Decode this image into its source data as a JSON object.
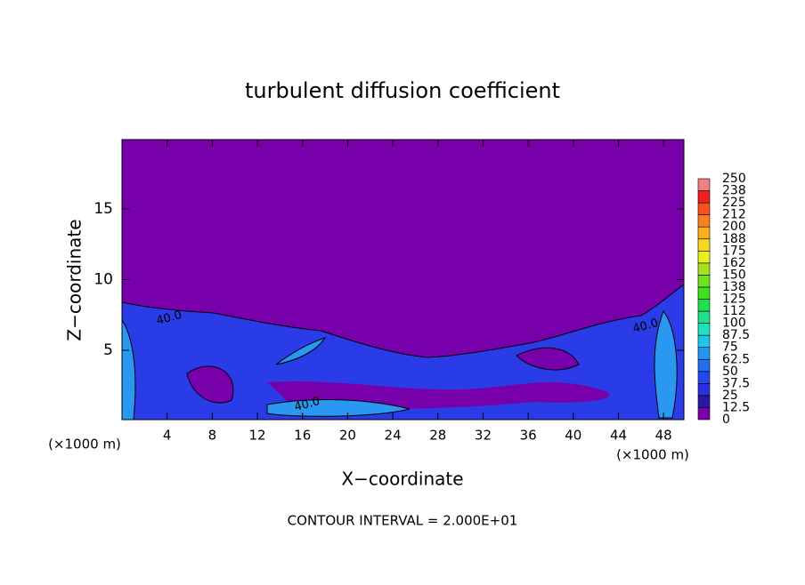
{
  "chart_data": {
    "type": "contour",
    "title": "turbulent diffusion coefficient",
    "xlabel": "X−coordinate",
    "ylabel": "Z−coordinate",
    "x_unit": "(×1000 m)",
    "footer": "CONTOUR INTERVAL = 2.000E+01",
    "xlim": [
      0,
      49.8
    ],
    "ylim": [
      0.1,
      19.9
    ],
    "xticks": [
      4,
      8,
      12,
      16,
      20,
      24,
      28,
      32,
      36,
      40,
      44,
      48
    ],
    "yticks": [
      5,
      10,
      15
    ],
    "contour_labels": [
      "40.0",
      "40.0",
      "40.0"
    ],
    "colorbar": {
      "levels": [
        0,
        12.5,
        25,
        37.5,
        50,
        62.5,
        75,
        87.5,
        100,
        {
          "value": 112.5,
          "label": "112"
        },
        125,
        {
          "value": 137.5,
          "label": "138"
        },
        150,
        {
          "value": 162.5,
          "label": "162"
        },
        175,
        {
          "value": 187.5,
          "label": "188"
        },
        200,
        {
          "value": 212.5,
          "label": "212"
        },
        225,
        {
          "value": 237.5,
          "label": "238"
        },
        250
      ],
      "colors": [
        "#7800aa",
        "#2818a8",
        "#2830e0",
        "#2448f0",
        "#2070f0",
        "#2098f0",
        "#20c8e8",
        "#20e0c0",
        "#20e090",
        "#20e050",
        "#40e020",
        "#70e020",
        "#a8e020",
        "#e8f020",
        "#f8d820",
        "#f8b020",
        "#f88020",
        "#f85020",
        "#f02020",
        "#f08080"
      ]
    }
  }
}
